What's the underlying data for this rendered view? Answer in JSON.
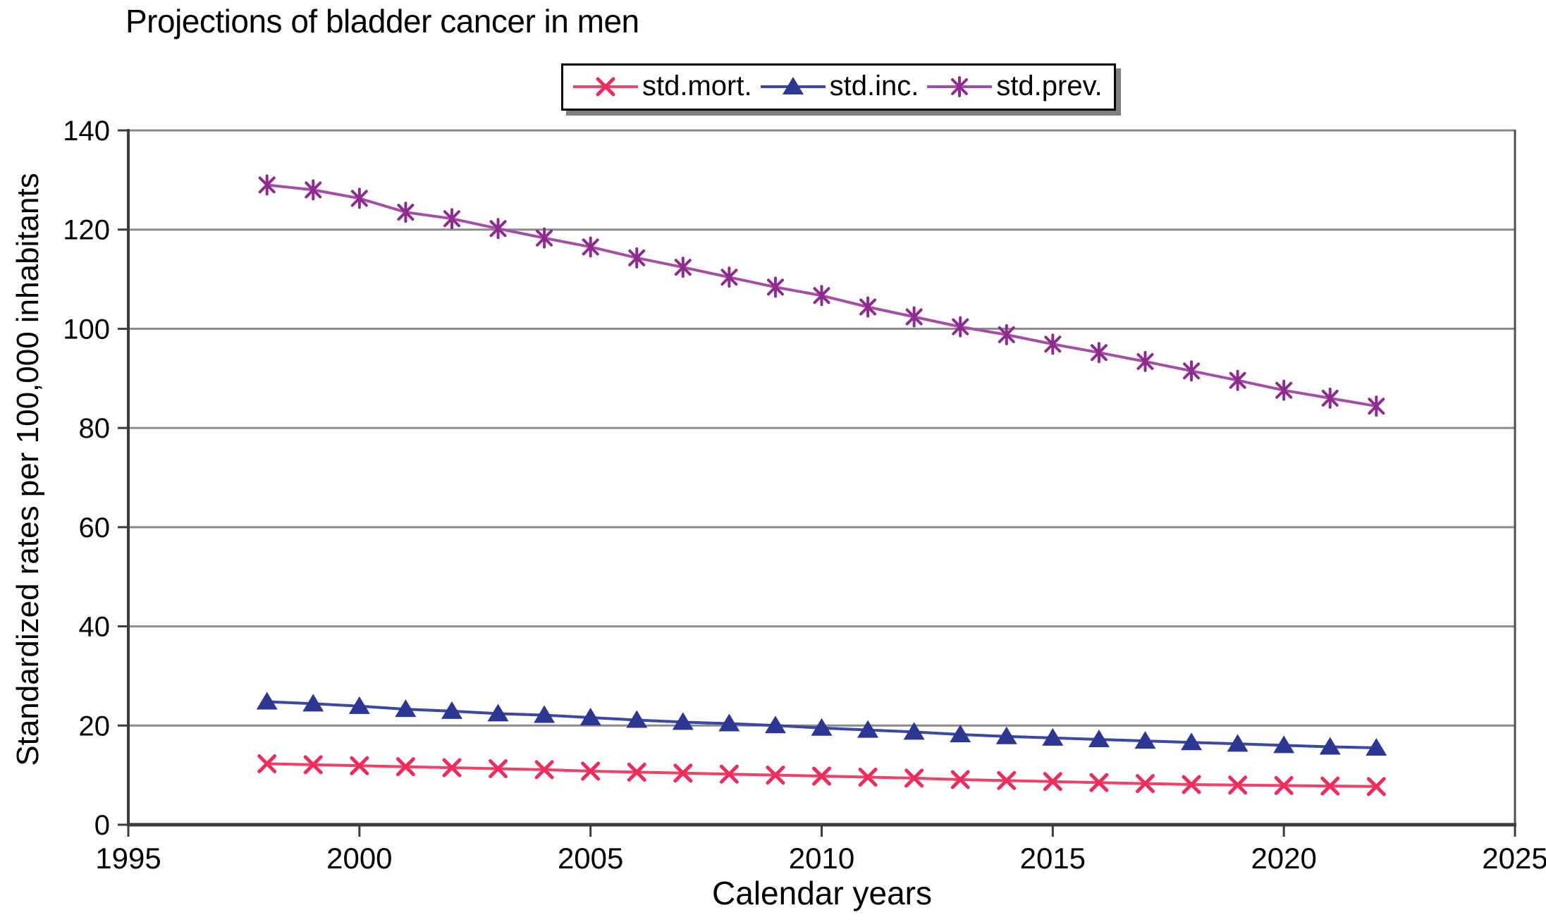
{
  "title": "Projections of bladder cancer in men",
  "legend": {
    "items": [
      {
        "label": "std.mort."
      },
      {
        "label": "std.inc."
      },
      {
        "label": "std.prev."
      }
    ]
  },
  "y_axis": {
    "title": "Standardized rates per 100,000 inhabitants",
    "ticks": [
      0,
      20,
      40,
      60,
      80,
      100,
      120,
      140
    ]
  },
  "x_axis": {
    "title": "Calendar years",
    "ticks": [
      1995,
      2000,
      2005,
      2010,
      2015,
      2020,
      2025
    ]
  },
  "colors": {
    "background": "#ffffff",
    "gridline": "#8b8b8b",
    "axis": "#3c3c3c",
    "plot_right_border": "#4f4f4f",
    "text": "#000000",
    "legend_border": "#000000",
    "legend_shadow": "#7f7f7f"
  },
  "chart_data": {
    "type": "line",
    "title": "Projections of bladder cancer in men",
    "xlabel": "Calendar years",
    "ylabel": "Standardized rates per 100,000 inhabitants",
    "xlim": [
      1995,
      2025
    ],
    "ylim": [
      0,
      140
    ],
    "grid": "horizontal",
    "legend_position": "top-center",
    "x": [
      1998,
      1999,
      2000,
      2001,
      2002,
      2003,
      2004,
      2005,
      2006,
      2007,
      2008,
      2009,
      2010,
      2011,
      2012,
      2013,
      2014,
      2015,
      2016,
      2017,
      2018,
      2019,
      2020,
      2021,
      2022
    ],
    "series": [
      {
        "name": "std.mort.",
        "marker": "x",
        "color": "#f04168",
        "marker_color": "#ee2d5c",
        "values": [
          12.3,
          12.1,
          11.9,
          11.7,
          11.5,
          11.3,
          11.1,
          10.8,
          10.6,
          10.4,
          10.2,
          10.0,
          9.8,
          9.6,
          9.4,
          9.1,
          8.9,
          8.7,
          8.5,
          8.3,
          8.1,
          8.0,
          7.9,
          7.8,
          7.7
        ]
      },
      {
        "name": "std.inc.",
        "marker": "triangle",
        "color": "#3b49a5",
        "marker_color": "#2b3790",
        "values": [
          24.8,
          24.4,
          23.9,
          23.3,
          22.9,
          22.4,
          22.1,
          21.6,
          21.1,
          20.7,
          20.4,
          20.0,
          19.5,
          19.1,
          18.7,
          18.2,
          17.8,
          17.5,
          17.2,
          16.9,
          16.6,
          16.3,
          16.0,
          15.7,
          15.5
        ]
      },
      {
        "name": "std.prev.",
        "marker": "asterisk",
        "color": "#a44fa4",
        "marker_color": "#8e2b8e",
        "values": [
          129.0,
          128.0,
          126.3,
          123.5,
          122.2,
          120.2,
          118.3,
          116.5,
          114.3,
          112.4,
          110.4,
          108.4,
          106.7,
          104.4,
          102.4,
          100.4,
          98.8,
          96.9,
          95.2,
          93.4,
          91.5,
          89.6,
          87.6,
          86.0,
          84.4
        ]
      }
    ]
  }
}
